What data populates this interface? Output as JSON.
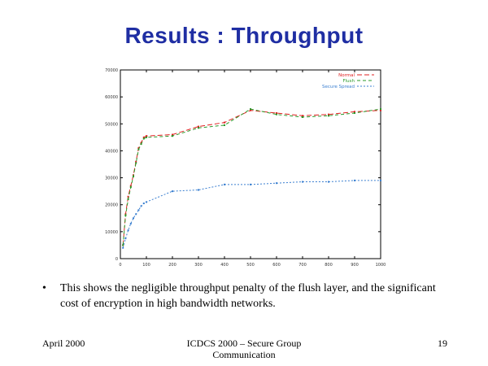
{
  "slide": {
    "title": "Results : Throughput",
    "bullet_marker": "•",
    "bullet_text": "This shows the negligible throughput penalty of the flush layer, and the significant cost of encryption in high bandwidth networks.",
    "footer_left": "April 2000",
    "footer_center": "ICDCS 2000 – Secure Group Communication",
    "footer_right": "19"
  },
  "chart_data": {
    "type": "line",
    "title": "",
    "xlabel": "",
    "ylabel": "",
    "xlim": [
      0,
      1000
    ],
    "ylim": [
      0,
      70000
    ],
    "xticks": [
      0,
      100,
      200,
      300,
      400,
      500,
      600,
      700,
      800,
      900,
      1000
    ],
    "yticks": [
      0,
      10000,
      20000,
      30000,
      40000,
      50000,
      60000,
      70000
    ],
    "xtick_labels": [
      "0",
      "100",
      "200",
      "300",
      "400",
      "500",
      "600",
      "700",
      "800",
      "900",
      "1000"
    ],
    "ytick_labels": [
      "0",
      "10000",
      "20000",
      "30000",
      "40000",
      "50000",
      "60000",
      "70000"
    ],
    "legend_position": "top-right",
    "series": [
      {
        "name": "Normal",
        "color": "#e02020",
        "dash": "6,3",
        "x": [
          10,
          20,
          30,
          40,
          50,
          60,
          70,
          80,
          90,
          100,
          200,
          300,
          400,
          500,
          600,
          700,
          800,
          900,
          1000
        ],
        "y": [
          5000,
          16500,
          23000,
          27000,
          31000,
          36000,
          41000,
          43000,
          45000,
          45500,
          46000,
          49000,
          50500,
          55000,
          54000,
          53000,
          53500,
          54500,
          55000
        ]
      },
      {
        "name": "Flush",
        "color": "#2a9a2a",
        "dash": "4,3",
        "x": [
          10,
          20,
          30,
          40,
          50,
          60,
          70,
          80,
          90,
          100,
          200,
          300,
          400,
          500,
          600,
          700,
          800,
          900,
          1000
        ],
        "y": [
          5000,
          16000,
          22000,
          26500,
          30500,
          35500,
          40500,
          42500,
          44500,
          45000,
          45500,
          48500,
          49500,
          55500,
          53500,
          52500,
          53000,
          54000,
          55500
        ]
      },
      {
        "name": "Secure Spread",
        "color": "#3a7fd0",
        "dash": "2,2",
        "x": [
          10,
          20,
          30,
          40,
          50,
          60,
          70,
          80,
          90,
          100,
          200,
          300,
          400,
          500,
          600,
          700,
          800,
          900,
          1000
        ],
        "y": [
          4000,
          7500,
          10500,
          13000,
          15000,
          16500,
          18000,
          19500,
          20500,
          21000,
          25000,
          25500,
          27500,
          27500,
          28000,
          28500,
          28500,
          29000,
          29000
        ]
      }
    ]
  }
}
